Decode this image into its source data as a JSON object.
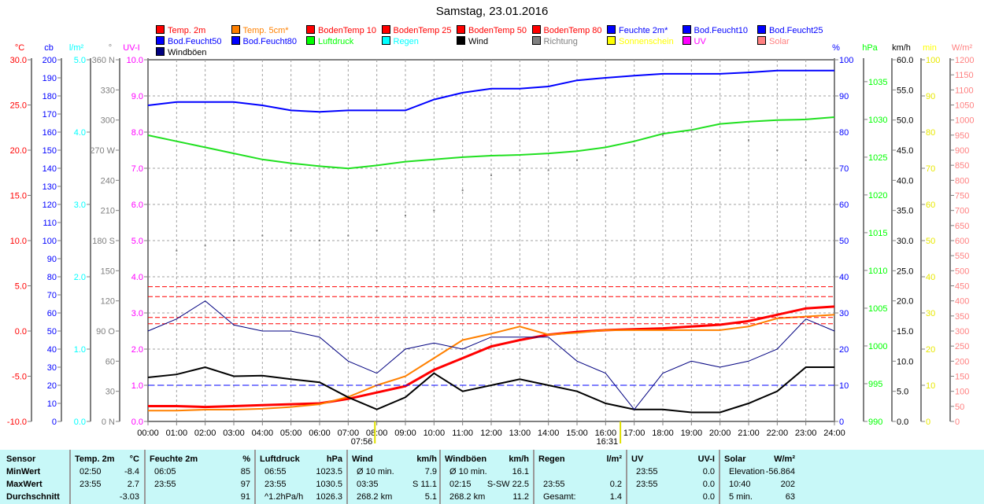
{
  "title": "Samstag, 23.01.2016",
  "legend": [
    {
      "label": "Temp. 2m",
      "color": "#ff0000"
    },
    {
      "label": "Temp. 5cm*",
      "color": "#ff8000"
    },
    {
      "label": "BodenTemp 10",
      "color": "#ff0000"
    },
    {
      "label": "BodenTemp 25",
      "color": "#ff0000"
    },
    {
      "label": "BodenTemp 50",
      "color": "#ff0000"
    },
    {
      "label": "BodenTemp 80",
      "color": "#ff0000"
    },
    {
      "label": "Feuchte 2m*",
      "color": "#0000ff"
    },
    {
      "label": "Bod.Feucht10",
      "color": "#0000ff"
    },
    {
      "label": "Bod.Feucht25",
      "color": "#0000ff"
    },
    {
      "label": "Bod.Feucht50",
      "color": "#0000ff"
    },
    {
      "label": "Bod.Feucht80",
      "color": "#0000ff"
    },
    {
      "label": "Luftdruck",
      "color": "#00ff00"
    },
    {
      "label": "Regen",
      "color": "#00ffff"
    },
    {
      "label": "Wind",
      "color": "#000000"
    },
    {
      "label": "Richtung",
      "color": "#808080"
    },
    {
      "label": "Sonnenschein",
      "color": "#ffff00"
    },
    {
      "label": "UV",
      "color": "#ff00ff"
    },
    {
      "label": "Solar",
      "color": "#ff8080"
    },
    {
      "label": "Windböen",
      "color": "#000080"
    }
  ],
  "chart_data": {
    "type": "line",
    "title": "Samstag, 23.01.2016",
    "x_ticks": [
      "00:00",
      "01:00",
      "02:00",
      "03:00",
      "04:00",
      "05:00",
      "06:00",
      "07:00",
      "08:00",
      "09:00",
      "10:00",
      "11:00",
      "12:00",
      "13:00",
      "14:00",
      "15:00",
      "16:00",
      "17:00",
      "18:00",
      "19:00",
      "20:00",
      "21:00",
      "22:00",
      "23:00",
      "24:00"
    ],
    "x_hours": [
      0,
      1,
      2,
      3,
      4,
      5,
      6,
      7,
      8,
      9,
      10,
      11,
      12,
      13,
      14,
      15,
      16,
      17,
      18,
      19,
      20,
      21,
      22,
      23,
      24
    ],
    "sunrise": "07:56",
    "sunset": "16:31",
    "grid": true,
    "axes_left": [
      {
        "unit": "°C",
        "color": "#ff0000",
        "min": -10,
        "max": 30,
        "step": 5,
        "decimals": 1
      },
      {
        "unit": "cb",
        "color": "#0000ff",
        "min": 0,
        "max": 200,
        "step": 10,
        "decimals": 0
      },
      {
        "unit": "l/m²",
        "color": "#00ffff",
        "min": 0,
        "max": 5,
        "step": 1,
        "decimals": 1
      },
      {
        "unit": "°",
        "color": "#808080",
        "min": 0,
        "max": 360,
        "step": 30,
        "labels": {
          "0": "0 N",
          "90": "90 O",
          "180": "180 S",
          "270": "270 W",
          "360": "360 N"
        }
      },
      {
        "unit": "UV-I",
        "color": "#ff00ff",
        "min": 0,
        "max": 10,
        "step": 1,
        "decimals": 1
      }
    ],
    "axes_right": [
      {
        "unit": "%",
        "color": "#0000ff",
        "min": 0,
        "max": 100,
        "step": 10,
        "decimals": 0
      },
      {
        "unit": "hPa",
        "color": "#00ff00",
        "min": 990,
        "max": 1037.9,
        "step": 5,
        "decimals": 0
      },
      {
        "unit": "km/h",
        "color": "#000000",
        "min": 0,
        "max": 60,
        "step": 5,
        "decimals": 1
      },
      {
        "unit": "min",
        "color": "#ffff00",
        "min": 0,
        "max": 100,
        "step": 10,
        "decimals": 0
      },
      {
        "unit": "W/m²",
        "color": "#ff8080",
        "min": 0,
        "max": 1200,
        "step": 50,
        "decimals": 0
      }
    ],
    "series": [
      {
        "name": "Temp. 2m",
        "axis": "°C",
        "color": "#ff0000",
        "width": 3,
        "values": [
          -8.3,
          -8.3,
          -8.4,
          -8.3,
          -8.2,
          -8.1,
          -8,
          -7.5,
          -6.8,
          -6.1,
          -4.3,
          -3,
          -1.7,
          -1,
          -0.4,
          -0.1,
          0.1,
          0.2,
          0.3,
          0.5,
          0.7,
          1.1,
          1.8,
          2.5,
          2.7
        ]
      },
      {
        "name": "Temp. 5cm*",
        "axis": "°C",
        "color": "#ff8000",
        "width": 2,
        "values": [
          -8.8,
          -8.8,
          -8.7,
          -8.7,
          -8.6,
          -8.4,
          -8.1,
          -7.3,
          -6,
          -5,
          -3,
          -1,
          -0.3,
          0.5,
          -0.4,
          -0.2,
          0.1,
          0.1,
          0.1,
          0.1,
          0.1,
          0.5,
          1.4,
          1.6,
          1.8
        ]
      },
      {
        "name": "BodenTemp 10",
        "axis": "°C",
        "color": "#ff0000",
        "width": 1,
        "dash": "6,3",
        "values": [
          0.8,
          0.8,
          0.8,
          0.8,
          0.8,
          0.8,
          0.8,
          0.8,
          0.8,
          0.8,
          0.8,
          0.8,
          0.8,
          0.8,
          0.8,
          0.8,
          0.8,
          0.8,
          0.8,
          0.8,
          0.8,
          0.8,
          0.8,
          0.8,
          0.8
        ]
      },
      {
        "name": "BodenTemp 25",
        "axis": "°C",
        "color": "#ff0000",
        "width": 1,
        "dash": "6,3",
        "values": [
          1.5,
          1.5,
          1.5,
          1.5,
          1.5,
          1.5,
          1.5,
          1.5,
          1.5,
          1.5,
          1.5,
          1.5,
          1.5,
          1.5,
          1.5,
          1.5,
          1.5,
          1.5,
          1.5,
          1.5,
          1.5,
          1.5,
          1.5,
          1.5,
          1.5
        ]
      },
      {
        "name": "BodenTemp 50",
        "axis": "°C",
        "color": "#ff0000",
        "width": 1,
        "dash": "6,3",
        "values": [
          3.8,
          3.8,
          3.8,
          3.8,
          3.8,
          3.8,
          3.8,
          3.8,
          3.8,
          3.8,
          3.8,
          3.8,
          3.8,
          3.8,
          3.8,
          3.8,
          3.8,
          3.8,
          3.8,
          3.8,
          3.8,
          3.8,
          3.8,
          3.8,
          3.8
        ]
      },
      {
        "name": "BodenTemp 80",
        "axis": "°C",
        "color": "#ff0000",
        "width": 1,
        "dash": "6,3",
        "values": [
          4.9,
          4.9,
          4.9,
          4.9,
          4.9,
          4.9,
          4.9,
          4.9,
          4.9,
          4.9,
          4.9,
          4.9,
          4.9,
          4.9,
          4.9,
          4.9,
          4.9,
          4.9,
          4.9,
          4.9,
          4.9,
          4.9,
          4.9,
          4.9,
          4.9
        ]
      },
      {
        "name": "Feuchte 2m*",
        "axis": "%",
        "color": "#0000ff",
        "width": 2,
        "values": [
          87.4,
          88.3,
          88.3,
          88.3,
          87.4,
          86,
          85.6,
          86,
          86,
          86,
          89,
          90.9,
          92,
          92,
          92.6,
          94.3,
          95,
          95.6,
          96.1,
          96.1,
          96.1,
          96.5,
          97,
          97,
          97
        ]
      },
      {
        "name": "Bod.Feucht10",
        "axis": "%",
        "color": "#0000ff",
        "width": 1,
        "dash": "8,4",
        "values": [
          10,
          10,
          10,
          10,
          10,
          10,
          10,
          10,
          10,
          10,
          10,
          10,
          10,
          10,
          10,
          10,
          10,
          10,
          10,
          10,
          10,
          10,
          10,
          10,
          10
        ]
      },
      {
        "name": "Luftdruck",
        "axis": "hPa",
        "color": "#20e020",
        "width": 2,
        "values": [
          1027.9,
          1027.1,
          1026.3,
          1025.5,
          1024.7,
          1024.2,
          1023.8,
          1023.5,
          1023.9,
          1024.4,
          1024.7,
          1025,
          1025.2,
          1025.3,
          1025.5,
          1025.8,
          1026.3,
          1027.1,
          1028.1,
          1028.6,
          1029.4,
          1029.7,
          1029.9,
          1030,
          1030.3
        ]
      },
      {
        "name": "Wind",
        "axis": "km/h",
        "color": "#000000",
        "width": 2,
        "values": [
          7.3,
          7.8,
          9,
          7.5,
          7.6,
          7,
          6.5,
          4,
          2,
          4,
          8,
          5,
          6,
          7,
          6,
          5,
          3,
          2,
          2,
          1.5,
          1.5,
          3,
          5,
          9,
          9
        ]
      },
      {
        "name": "Windböen",
        "axis": "km/h",
        "color": "#000080",
        "width": 1,
        "values": [
          15,
          17,
          20,
          16,
          15,
          15,
          14,
          10,
          8,
          12,
          13,
          12,
          14,
          14,
          14,
          10,
          8,
          2,
          8,
          10,
          9,
          10,
          12,
          17,
          15
        ]
      },
      {
        "name": "Richtung",
        "axis": "°",
        "color": "#808080",
        "type": "scatter",
        "values": [
          160,
          170,
          175,
          180,
          185,
          190,
          180,
          185,
          190,
          205,
          210,
          230,
          245,
          250,
          250,
          260,
          265,
          275,
          285,
          290,
          270,
          280,
          270,
          260,
          220
        ]
      }
    ]
  },
  "table": {
    "columns": [
      {
        "h1": "Sensor",
        "h2": "",
        "rows": [
          [
            "MinWert",
            ""
          ],
          [
            "MaxWert",
            ""
          ],
          [
            "Durchschnitt",
            ""
          ]
        ],
        "bold_rows": true
      },
      {
        "h1": "Temp. 2m",
        "h2": "°C",
        "rows": [
          [
            "02:50",
            "-8.4"
          ],
          [
            "23:55",
            "2.7"
          ],
          [
            "",
            "-3.03"
          ]
        ]
      },
      {
        "h1": "Feuchte 2m",
        "h2": "%",
        "rows": [
          [
            "06:05",
            "85"
          ],
          [
            "23:55",
            "97"
          ],
          [
            "",
            "91"
          ]
        ]
      },
      {
        "h1": "Luftdruck",
        "h2": "hPa",
        "rows": [
          [
            "06:55",
            "1023.5"
          ],
          [
            "23:55",
            "1030.5"
          ],
          [
            "^1.2hPa/h",
            "1026.3"
          ]
        ]
      },
      {
        "h1": "Wind",
        "h2": "km/h",
        "rows": [
          [
            "Ø 10 min.",
            "7.9"
          ],
          [
            "03:35",
            "S 11.1"
          ],
          [
            "268.2 km",
            "5.1"
          ]
        ]
      },
      {
        "h1": "Windböen",
        "h2": "km/h",
        "rows": [
          [
            "Ø 10 min.",
            "16.1"
          ],
          [
            "02:15",
            "S-SW 22.5"
          ],
          [
            "268.2 km",
            "11.2"
          ]
        ]
      },
      {
        "h1": "Regen",
        "h2": "l/m²",
        "rows": [
          [
            "",
            ""
          ],
          [
            "23:55",
            "0.2"
          ],
          [
            "Gesamt:",
            "1.4"
          ]
        ]
      },
      {
        "h1": "UV",
        "h2": "UV-I",
        "rows": [
          [
            "23:55",
            "0.0"
          ],
          [
            "23:55",
            "0.0"
          ],
          [
            "",
            "0.0"
          ]
        ]
      },
      {
        "h1": "Solar",
        "h2": "W/m²",
        "rows": [
          [
            "Elevation",
            "-56.864"
          ],
          [
            "10:40",
            "202"
          ],
          [
            "5 min.",
            "63"
          ]
        ]
      }
    ]
  }
}
